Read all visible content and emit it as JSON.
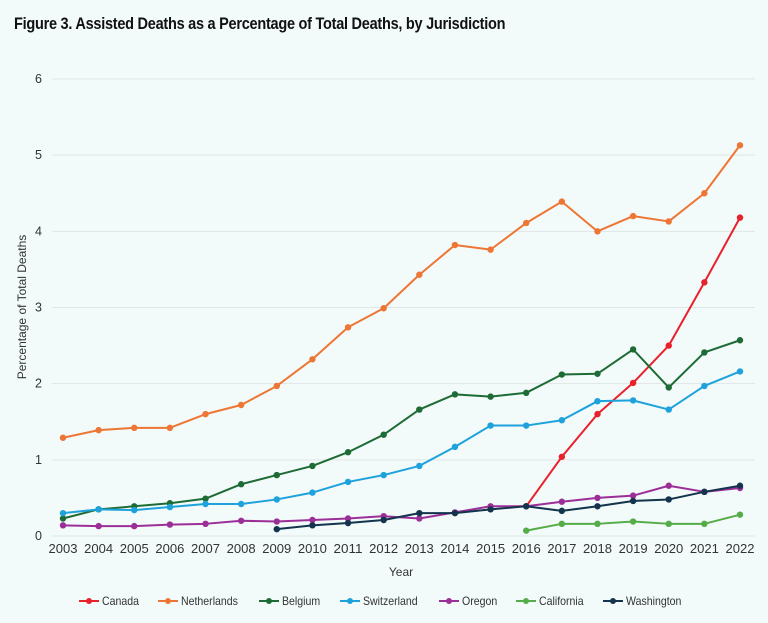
{
  "chart_data": {
    "type": "line",
    "title": "Figure 3. Assisted Deaths as a Percentage of Total Deaths, by Jurisdiction",
    "xlabel": "Year",
    "ylabel": "Percentage of Total Deaths",
    "x": [
      2003,
      2004,
      2005,
      2006,
      2007,
      2008,
      2009,
      2010,
      2011,
      2012,
      2013,
      2014,
      2015,
      2016,
      2017,
      2018,
      2019,
      2020,
      2021,
      2022
    ],
    "ylim": [
      0,
      6
    ],
    "yticks": [
      0,
      1,
      2,
      3,
      4,
      5,
      6
    ],
    "grid": true,
    "legend_position": "bottom",
    "series": [
      {
        "name": "Canada",
        "color": "#e8212b",
        "values": [
          null,
          null,
          null,
          null,
          null,
          null,
          null,
          null,
          null,
          null,
          null,
          null,
          null,
          0.39,
          1.04,
          1.6,
          2.01,
          2.5,
          3.33,
          4.18
        ]
      },
      {
        "name": "Netherlands",
        "color": "#ee7634",
        "values": [
          1.29,
          1.39,
          1.42,
          1.42,
          1.6,
          1.72,
          1.97,
          2.32,
          2.74,
          2.99,
          3.43,
          3.82,
          3.76,
          4.11,
          4.39,
          4.0,
          4.2,
          4.13,
          4.5,
          5.13
        ]
      },
      {
        "name": "Belgium",
        "color": "#1d6b35",
        "values": [
          0.23,
          0.35,
          0.39,
          0.43,
          0.49,
          0.68,
          0.8,
          0.92,
          1.1,
          1.33,
          1.66,
          1.86,
          1.83,
          1.88,
          2.12,
          2.13,
          2.45,
          1.95,
          2.41,
          2.57
        ]
      },
      {
        "name": "Switzerland",
        "color": "#1ea2dc",
        "values": [
          0.3,
          0.35,
          0.34,
          0.38,
          0.42,
          0.42,
          0.48,
          0.57,
          0.71,
          0.8,
          0.92,
          1.17,
          1.45,
          1.45,
          1.52,
          1.77,
          1.78,
          1.66,
          1.97,
          2.16
        ]
      },
      {
        "name": "Oregon",
        "color": "#9c2e98",
        "values": [
          0.14,
          0.13,
          0.13,
          0.15,
          0.16,
          0.2,
          0.19,
          0.21,
          0.23,
          0.26,
          0.23,
          0.31,
          0.39,
          0.39,
          0.45,
          0.5,
          0.53,
          0.66,
          0.58,
          0.63
        ]
      },
      {
        "name": "California",
        "color": "#56ac48",
        "values": [
          null,
          null,
          null,
          null,
          null,
          null,
          null,
          null,
          null,
          null,
          null,
          null,
          null,
          0.07,
          0.16,
          0.16,
          0.19,
          0.16,
          0.16,
          0.28
        ]
      },
      {
        "name": "Washington",
        "color": "#13344c",
        "values": [
          null,
          null,
          null,
          null,
          null,
          null,
          0.09,
          0.14,
          0.17,
          0.21,
          0.3,
          0.3,
          0.35,
          0.39,
          0.33,
          0.39,
          0.46,
          0.48,
          0.58,
          0.66
        ]
      }
    ]
  }
}
